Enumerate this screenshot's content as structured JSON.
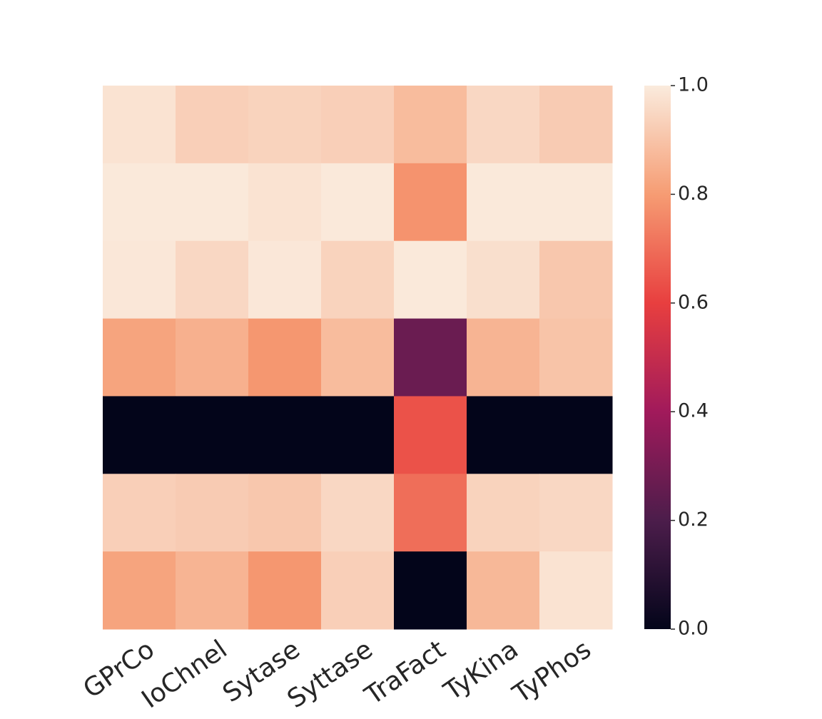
{
  "chart_data": {
    "type": "heatmap",
    "categories": [
      "GPrCo",
      "IoChnel",
      "Sytase",
      "Syttase",
      "TraFact",
      "TyKina",
      "TyPhos"
    ],
    "values": [
      [
        0.98,
        0.93,
        0.94,
        0.93,
        0.88,
        0.95,
        0.92
      ],
      [
        0.995,
        0.995,
        0.98,
        0.995,
        0.78,
        0.995,
        0.995
      ],
      [
        0.99,
        0.95,
        0.99,
        0.94,
        0.995,
        0.97,
        0.91
      ],
      [
        0.82,
        0.85,
        0.79,
        0.88,
        0.27,
        0.86,
        0.9
      ],
      [
        0.0,
        0.0,
        0.0,
        0.0,
        0.64,
        0.0,
        0.0
      ],
      [
        0.93,
        0.92,
        0.91,
        0.95,
        0.7,
        0.94,
        0.95
      ],
      [
        0.82,
        0.86,
        0.79,
        0.93,
        0.0,
        0.87,
        0.98
      ]
    ],
    "colorscale": [
      "#03051a",
      "#4c1d4b",
      "#a11a5b",
      "#e83f3f",
      "#f69c73",
      "#faebdd"
    ],
    "clim": [
      0,
      1
    ],
    "cticks": [
      {
        "value": 0,
        "label": "0.0"
      },
      0.2,
      0.4,
      0.6,
      0.8,
      {
        "value": 1,
        "label": "1.0"
      }
    ]
  }
}
